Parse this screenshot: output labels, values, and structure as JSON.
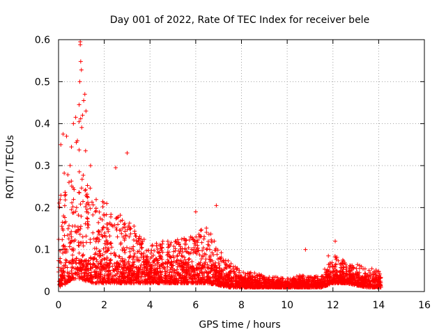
{
  "chart_data": {
    "type": "scatter",
    "title": "Day 001 of 2022, Rate Of TEC Index for receiver bele",
    "xlabel": "GPS time / hours",
    "ylabel": "ROTI / TECUs",
    "xlim": [
      0,
      16
    ],
    "ylim": [
      0,
      0.6
    ],
    "xticks": [
      0,
      2,
      4,
      6,
      8,
      10,
      12,
      14,
      16
    ],
    "yticks": [
      0,
      0.1,
      0.2,
      0.3,
      0.4,
      0.5,
      0.6
    ],
    "xtick_labels": [
      "0",
      "2",
      "4",
      "6",
      "8",
      "10",
      "12",
      "14",
      "16"
    ],
    "ytick_labels": [
      "0",
      "0.1",
      "0.2",
      "0.3",
      "0.4",
      "0.5",
      "0.6"
    ],
    "grid": true,
    "marker": "plus",
    "color": "#ff0000",
    "series": [
      {
        "name": "ROTI",
        "envelope": {
          "note": "approximate upper/lower bounds of the dense point cloud, read from the chart",
          "x": [
            0.0,
            0.2,
            0.4,
            0.6,
            0.8,
            1.0,
            1.2,
            1.5,
            2.0,
            2.5,
            3.0,
            3.5,
            4.0,
            4.5,
            5.0,
            5.5,
            6.0,
            6.5,
            7.0,
            7.5,
            8.0,
            8.5,
            9.0,
            9.5,
            10.0,
            10.5,
            11.0,
            11.5,
            12.0,
            12.3,
            12.6,
            13.0,
            13.5,
            14.0,
            14.1
          ],
          "upper": [
            0.22,
            0.3,
            0.3,
            0.36,
            0.42,
            0.46,
            0.33,
            0.22,
            0.22,
            0.19,
            0.18,
            0.14,
            0.11,
            0.12,
            0.12,
            0.13,
            0.14,
            0.16,
            0.1,
            0.07,
            0.05,
            0.045,
            0.04,
            0.035,
            0.03,
            0.04,
            0.035,
            0.04,
            0.09,
            0.08,
            0.07,
            0.065,
            0.06,
            0.05,
            0.035
          ],
          "lower": [
            0.01,
            0.015,
            0.02,
            0.03,
            0.03,
            0.03,
            0.025,
            0.02,
            0.02,
            0.02,
            0.02,
            0.02,
            0.02,
            0.02,
            0.02,
            0.02,
            0.02,
            0.02,
            0.015,
            0.01,
            0.01,
            0.01,
            0.01,
            0.01,
            0.01,
            0.01,
            0.01,
            0.01,
            0.02,
            0.02,
            0.02,
            0.015,
            0.01,
            0.01,
            0.01
          ]
        },
        "outliers": [
          {
            "x": 0.95,
            "y": 0.595
          },
          {
            "x": 0.95,
            "y": 0.588
          },
          {
            "x": 0.97,
            "y": 0.548
          },
          {
            "x": 1.0,
            "y": 0.528
          },
          {
            "x": 0.93,
            "y": 0.5
          },
          {
            "x": 1.15,
            "y": 0.47
          },
          {
            "x": 1.1,
            "y": 0.455
          },
          {
            "x": 1.2,
            "y": 0.43
          },
          {
            "x": 1.05,
            "y": 0.42
          },
          {
            "x": 0.9,
            "y": 0.445
          },
          {
            "x": 0.75,
            "y": 0.415
          },
          {
            "x": 0.65,
            "y": 0.4
          },
          {
            "x": 0.2,
            "y": 0.375
          },
          {
            "x": 0.35,
            "y": 0.37
          },
          {
            "x": 0.1,
            "y": 0.35
          },
          {
            "x": 3.0,
            "y": 0.33
          },
          {
            "x": 2.5,
            "y": 0.295
          },
          {
            "x": 1.4,
            "y": 0.3
          },
          {
            "x": 6.9,
            "y": 0.205
          },
          {
            "x": 6.0,
            "y": 0.19
          },
          {
            "x": 10.8,
            "y": 0.1
          },
          {
            "x": 12.1,
            "y": 0.12
          },
          {
            "x": 11.8,
            "y": 0.085
          }
        ]
      }
    ]
  }
}
